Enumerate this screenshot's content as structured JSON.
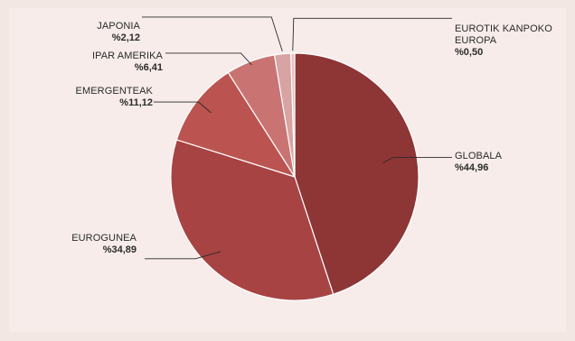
{
  "chart_data": {
    "type": "pie",
    "title": "",
    "slices": [
      {
        "label": "GLOBALA",
        "display": "%44,96",
        "value": 44.96,
        "color": "#8e3535"
      },
      {
        "label": "EUROGUNEA",
        "display": "%34,89",
        "value": 34.89,
        "color": "#a84343"
      },
      {
        "label": "EMERGENTEAK",
        "display": "%11,12",
        "value": 11.12,
        "color": "#bb5450"
      },
      {
        "label": "IPAR AMERIKA",
        "display": "%6,41",
        "value": 6.41,
        "color": "#c97472"
      },
      {
        "label": "JAPONIA",
        "display": "%2,12",
        "value": 2.12,
        "color": "#d8a3a3"
      },
      {
        "label": "EUROTIK KANPOKO EUROPA",
        "label_lines": [
          "EUROTIK KANPOKO",
          "EUROPA"
        ],
        "display": "%0,50",
        "value": 0.5,
        "color": "#e6c2c0"
      }
    ]
  }
}
